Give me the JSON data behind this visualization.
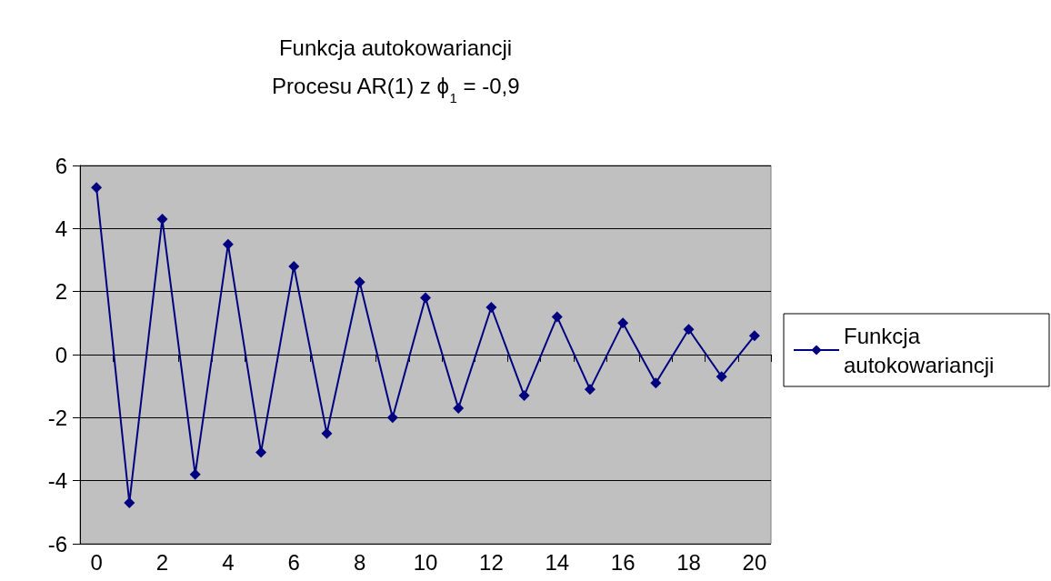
{
  "chart_data": {
    "type": "line",
    "title": "Funkcja autokowariancji\nProcesu AR(1) z ϕ$_{1}$ = -0,9",
    "categories": [
      "0",
      null,
      "2",
      null,
      "4",
      null,
      "6",
      null,
      "8",
      null,
      "10",
      null,
      "12",
      null,
      "14",
      null,
      "16",
      null,
      "18",
      null,
      "20"
    ],
    "series": [
      {
        "name": "Funkcja autokowariancji",
        "color": "#000080",
        "values": [
          5.3,
          -4.7,
          4.3,
          -3.8,
          3.5,
          -3.1,
          2.8,
          -2.5,
          2.3,
          -2.0,
          1.8,
          -1.7,
          1.5,
          -1.3,
          1.2,
          -1.1,
          1.0,
          -0.9,
          0.8,
          -0.7,
          0.6
        ]
      }
    ],
    "ylim": [
      -6,
      6
    ],
    "yticks": [
      -6,
      -4,
      -2,
      0,
      2,
      4,
      6
    ],
    "grid": "y",
    "legend": "right",
    "marker": "diamond",
    "line_style": "solid"
  }
}
